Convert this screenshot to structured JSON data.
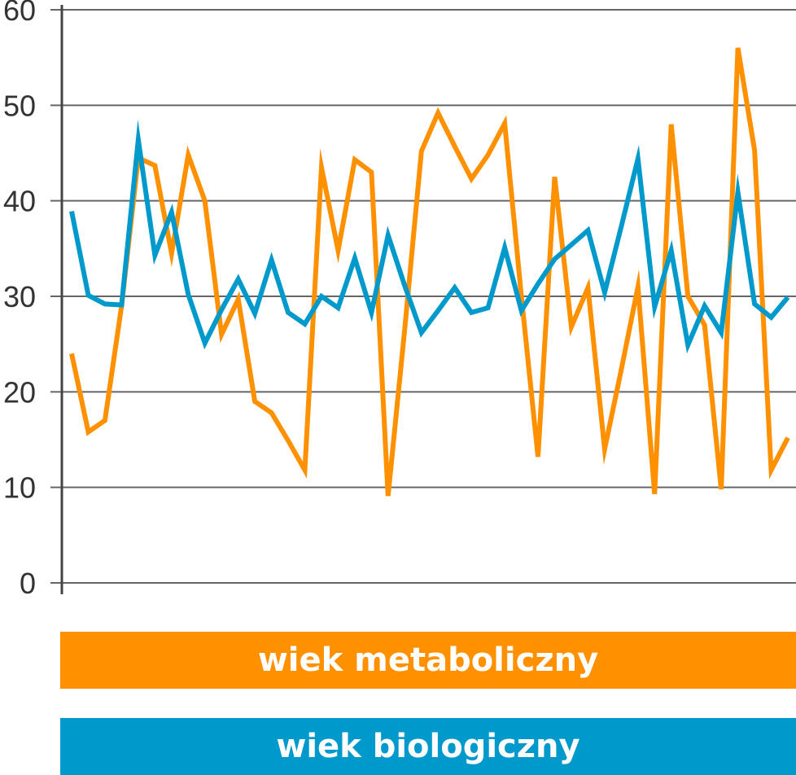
{
  "chart_data": {
    "type": "line",
    "ylim": [
      0,
      60
    ],
    "yticks": [
      0,
      10,
      20,
      30,
      40,
      50,
      60
    ],
    "grid": true,
    "legend_position": "bottom",
    "series": [
      {
        "name": "wiek metaboliczny",
        "color": "#ff9100",
        "values": [
          24,
          15.8,
          17,
          29,
          44.5,
          43.7,
          34.5,
          44.8,
          40,
          26,
          29.7,
          19,
          17.8,
          14.9,
          11.8,
          43.5,
          34.8,
          44.3,
          43,
          9.1,
          26.6,
          45.2,
          49.2,
          45.7,
          42.3,
          44.8,
          48.1,
          30,
          13.2,
          42.5,
          26.8,
          30.9,
          14,
          22.3,
          31,
          9.3,
          48,
          30,
          27,
          9.8,
          56,
          45.3,
          11.8,
          15.2
        ]
      },
      {
        "name": "wiek biologiczny",
        "color": "#0099cc",
        "values": [
          38.9,
          30.1,
          29.2,
          29.1,
          46.4,
          34.3,
          38.8,
          30.2,
          25.1,
          28.6,
          31.8,
          28.2,
          33.8,
          28.3,
          27.1,
          30,
          28.8,
          34,
          28.3,
          36.4,
          31.1,
          26.2,
          28.5,
          30.9,
          28.3,
          28.8,
          35.1,
          28.5,
          31.3,
          33.9,
          35.4,
          36.9,
          30.4,
          37.3,
          44.4,
          28.9,
          34.8,
          24.9,
          29,
          26.2,
          40.9,
          29.2,
          27.8,
          29.9
        ]
      }
    ]
  }
}
